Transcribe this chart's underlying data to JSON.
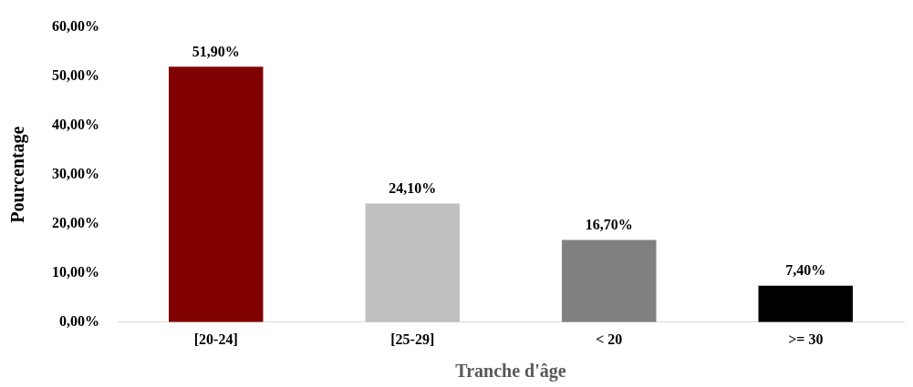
{
  "chart_data": {
    "type": "bar",
    "xlabel": "Tranche d'âge",
    "ylabel": "Pourcentage",
    "categories": [
      "[20-24]",
      "[25-29]",
      "< 20",
      ">= 30"
    ],
    "values": [
      51.9,
      24.1,
      16.7,
      7.4
    ],
    "colors": [
      "#800000",
      "#c0c0c0",
      "#808080",
      "#000000"
    ],
    "value_labels": [
      "51,90%",
      "24,10%",
      "16,70%",
      "7,40%"
    ],
    "ylim": [
      0,
      60
    ],
    "yticks": [
      {
        "value": 0,
        "label": "0,00%"
      },
      {
        "value": 10,
        "label": "10,00%"
      },
      {
        "value": 20,
        "label": "20,00%"
      },
      {
        "value": 30,
        "label": "30,00%"
      },
      {
        "value": 40,
        "label": "40,00%"
      },
      {
        "value": 50,
        "label": "50,00%"
      },
      {
        "value": 60,
        "label": "60,00%"
      }
    ],
    "grid": false,
    "legend": false
  }
}
